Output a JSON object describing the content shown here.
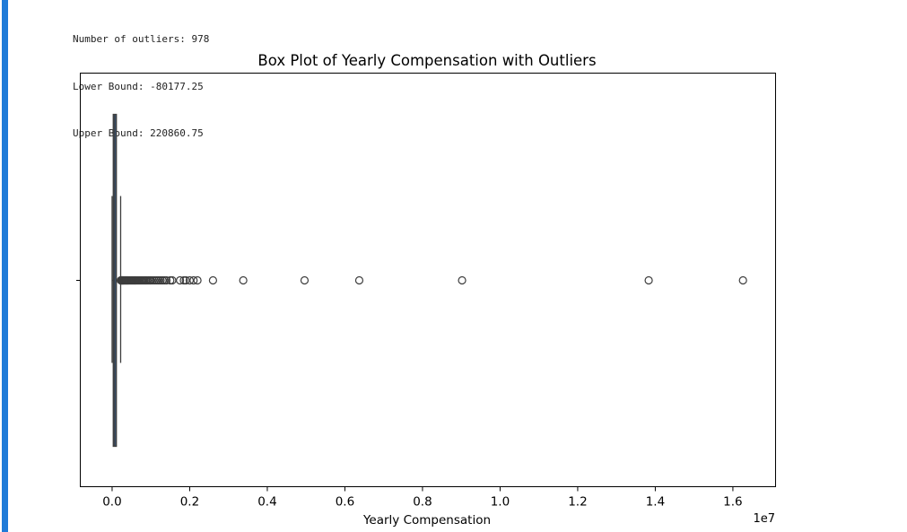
{
  "output": {
    "lines": [
      "Number of outliers: 978",
      "Lower Bound: -80177.25",
      "Upper Bound: 220860.75"
    ]
  },
  "colors": {
    "cell_accent": "#1f7bd8",
    "box_fill": "#3a5f8a",
    "box_stroke": "#3d3d3d"
  },
  "chart_data": {
    "type": "box",
    "orientation": "horizontal",
    "title": "Box Plot of Yearly Compensation with Outliers",
    "xlabel": "Yearly Compensation",
    "ylabel": "",
    "offset_text": "1e7",
    "xlim": [
      -820000,
      17100000
    ],
    "xticks": [
      0,
      2000000,
      4000000,
      6000000,
      8000000,
      10000000,
      12000000,
      14000000,
      16000000
    ],
    "xtick_labels": [
      "0.0",
      "0.2",
      "0.4",
      "0.6",
      "0.8",
      "1.0",
      "1.2",
      "1.4",
      "1.6"
    ],
    "box": {
      "q1": 30000,
      "median": 65000,
      "q3": 110000,
      "whisker_low": 0,
      "whisker_high": 220000
    },
    "outliers": [
      225000,
      235000,
      245000,
      255000,
      265000,
      275000,
      285000,
      300000,
      315000,
      330000,
      345000,
      360000,
      375000,
      390000,
      405000,
      420000,
      440000,
      460000,
      480000,
      500000,
      520000,
      540000,
      560000,
      580000,
      600000,
      620000,
      645000,
      670000,
      695000,
      720000,
      750000,
      780000,
      810000,
      840000,
      870000,
      900000,
      935000,
      970000,
      1000000,
      1050000,
      1100000,
      1150000,
      1200000,
      1250000,
      1300000,
      1350000,
      1400000,
      1500000,
      1550000,
      1750000,
      1850000,
      1900000,
      2000000,
      2100000,
      2200000,
      2600000,
      3380000,
      4960000,
      6370000,
      9020000,
      13830000,
      16260000
    ],
    "grid": false,
    "legend": "none"
  }
}
